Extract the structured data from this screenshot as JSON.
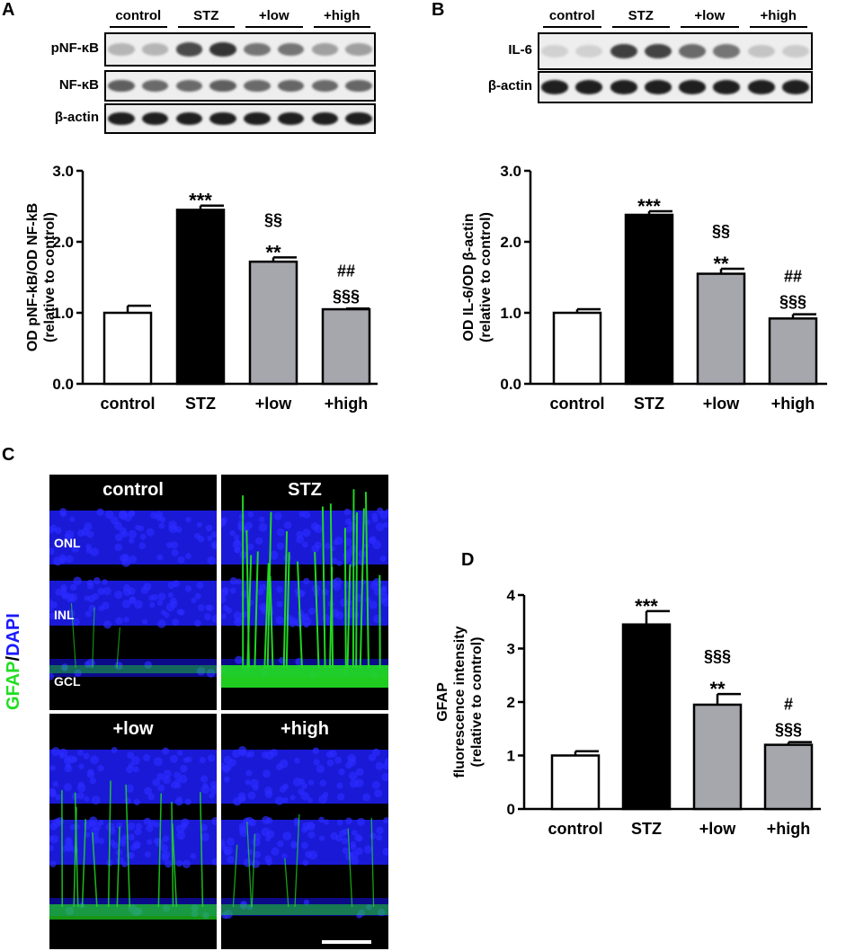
{
  "panels": {
    "a": {
      "label": "A",
      "blot": {
        "groups": [
          "control",
          "STZ",
          "+low",
          "+high"
        ],
        "rows": [
          "pNF-κB",
          "NF-κB",
          "β-actin"
        ],
        "band_intensity": [
          [
            0.25,
            0.25,
            0.75,
            0.85,
            0.55,
            0.55,
            0.35,
            0.35
          ],
          [
            0.65,
            0.6,
            0.6,
            0.65,
            0.6,
            0.62,
            0.6,
            0.62
          ],
          [
            0.95,
            0.95,
            0.95,
            0.95,
            0.95,
            0.95,
            0.95,
            0.95
          ]
        ]
      }
    },
    "b": {
      "label": "B",
      "blot": {
        "groups": [
          "control",
          "STZ",
          "+low",
          "+high"
        ],
        "rows": [
          "IL-6",
          "β-actin"
        ],
        "band_intensity": [
          [
            0.12,
            0.12,
            0.8,
            0.78,
            0.6,
            0.55,
            0.18,
            0.15
          ],
          [
            0.95,
            0.95,
            0.95,
            0.95,
            0.95,
            0.95,
            0.95,
            0.95
          ]
        ]
      }
    },
    "c": {
      "label": "C",
      "stain": {
        "left": "GFAP",
        "sep": "/",
        "right": "DAPI",
        "left_color": "#22dd22",
        "right_color": "#1a1aff"
      },
      "images": [
        {
          "title": "control",
          "gfap_level": 0.15
        },
        {
          "title": "STZ",
          "gfap_level": 0.95
        },
        {
          "title": "+low",
          "gfap_level": 0.55
        },
        {
          "title": "+high",
          "gfap_level": 0.3
        }
      ],
      "layers": [
        "ONL",
        "INL",
        "GCL"
      ]
    },
    "d": {
      "label": "D"
    }
  },
  "chart_data": [
    {
      "panel": "A",
      "type": "bar",
      "categories": [
        "control",
        "STZ",
        "+low",
        "+high"
      ],
      "values": [
        1.0,
        2.45,
        1.72,
        1.05
      ],
      "errors": [
        0.1,
        0.06,
        0.06,
        0.01
      ],
      "colors": [
        "#ffffff",
        "#000000",
        "#a6a6ad",
        "#a6a6ad"
      ],
      "annotations": [
        [],
        [
          "***"
        ],
        [
          "**",
          "§§"
        ],
        [
          "§§§",
          "##"
        ]
      ],
      "ylabel_lines": [
        "OD pNF-kB/OD NF-kB",
        "(relative to control)"
      ],
      "yticks": [
        "0.0",
        "1.0",
        "2.0",
        "3.0"
      ],
      "ylim": [
        0,
        3
      ]
    },
    {
      "panel": "B",
      "type": "bar",
      "categories": [
        "control",
        "STZ",
        "+low",
        "+high"
      ],
      "values": [
        1.0,
        2.38,
        1.55,
        0.92
      ],
      "errors": [
        0.05,
        0.05,
        0.07,
        0.06
      ],
      "colors": [
        "#ffffff",
        "#000000",
        "#a6a6ad",
        "#a6a6ad"
      ],
      "annotations": [
        [],
        [
          "***"
        ],
        [
          "**",
          "§§"
        ],
        [
          "§§§",
          "##"
        ]
      ],
      "ylabel_lines": [
        "OD IL-6/OD β-actin",
        "(relative to control)"
      ],
      "yticks": [
        "0.0",
        "1.0",
        "2.0",
        "3.0"
      ],
      "ylim": [
        0,
        3
      ]
    },
    {
      "panel": "D",
      "type": "bar",
      "categories": [
        "control",
        "STZ",
        "+low",
        "+high"
      ],
      "values": [
        1.0,
        3.45,
        1.95,
        1.2
      ],
      "errors": [
        0.08,
        0.25,
        0.2,
        0.05
      ],
      "colors": [
        "#ffffff",
        "#000000",
        "#a6a6ad",
        "#a6a6ad"
      ],
      "annotations": [
        [],
        [
          "***"
        ],
        [
          "**",
          "§§§"
        ],
        [
          "§§§",
          "#"
        ]
      ],
      "ylabel_lines": [
        "GFAP",
        "fluorescence intensity",
        "(relative to control)"
      ],
      "yticks": [
        "0",
        "1",
        "2",
        "3",
        "4"
      ],
      "ylim": [
        0,
        4
      ]
    }
  ]
}
